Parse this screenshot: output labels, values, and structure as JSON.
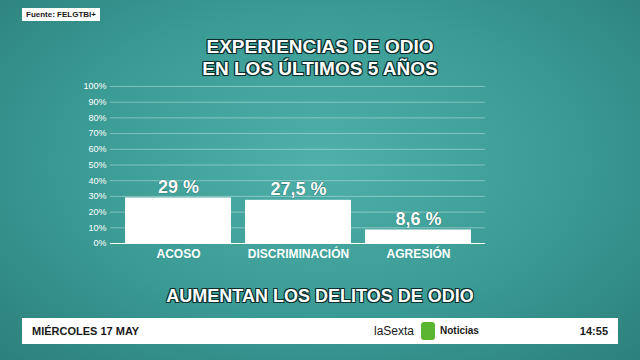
{
  "chart_data": {
    "type": "bar",
    "title": "EXPERIENCIAS DE ODIO\nEN LOS ÚLTIMOS 5 AÑOS",
    "categories": [
      "ACOSO",
      "DISCRIMINACIÓN",
      "AGRESIÓN"
    ],
    "values": [
      29,
      27.5,
      8.6
    ],
    "value_labels": [
      "29 %",
      "27,5 %",
      "8,6 %"
    ],
    "color": "#ffffff",
    "ylim": [
      0,
      100
    ],
    "yticks": [
      {
        "value": 0,
        "label": "0%"
      },
      {
        "value": 10,
        "label": "10%"
      },
      {
        "value": 20,
        "label": "20%"
      },
      {
        "value": 30,
        "label": "30%"
      },
      {
        "value": 40,
        "label": "40%"
      },
      {
        "value": 50,
        "label": "50%"
      },
      {
        "value": 60,
        "label": "60%"
      },
      {
        "value": 70,
        "label": "70%"
      },
      {
        "value": 80,
        "label": "80%"
      },
      {
        "value": 90,
        "label": "90%"
      },
      {
        "value": 100,
        "label": "100%"
      }
    ],
    "grid": true,
    "data_labels": true
  },
  "source": "Fuente: FELGTBI+",
  "headline": "AUMENTAN LOS DELITOS DE ODIO",
  "footer": {
    "date": "MIÉRCOLES 17 MAY",
    "channel": "laSexta",
    "program": "Noticias",
    "time": "14:55"
  }
}
